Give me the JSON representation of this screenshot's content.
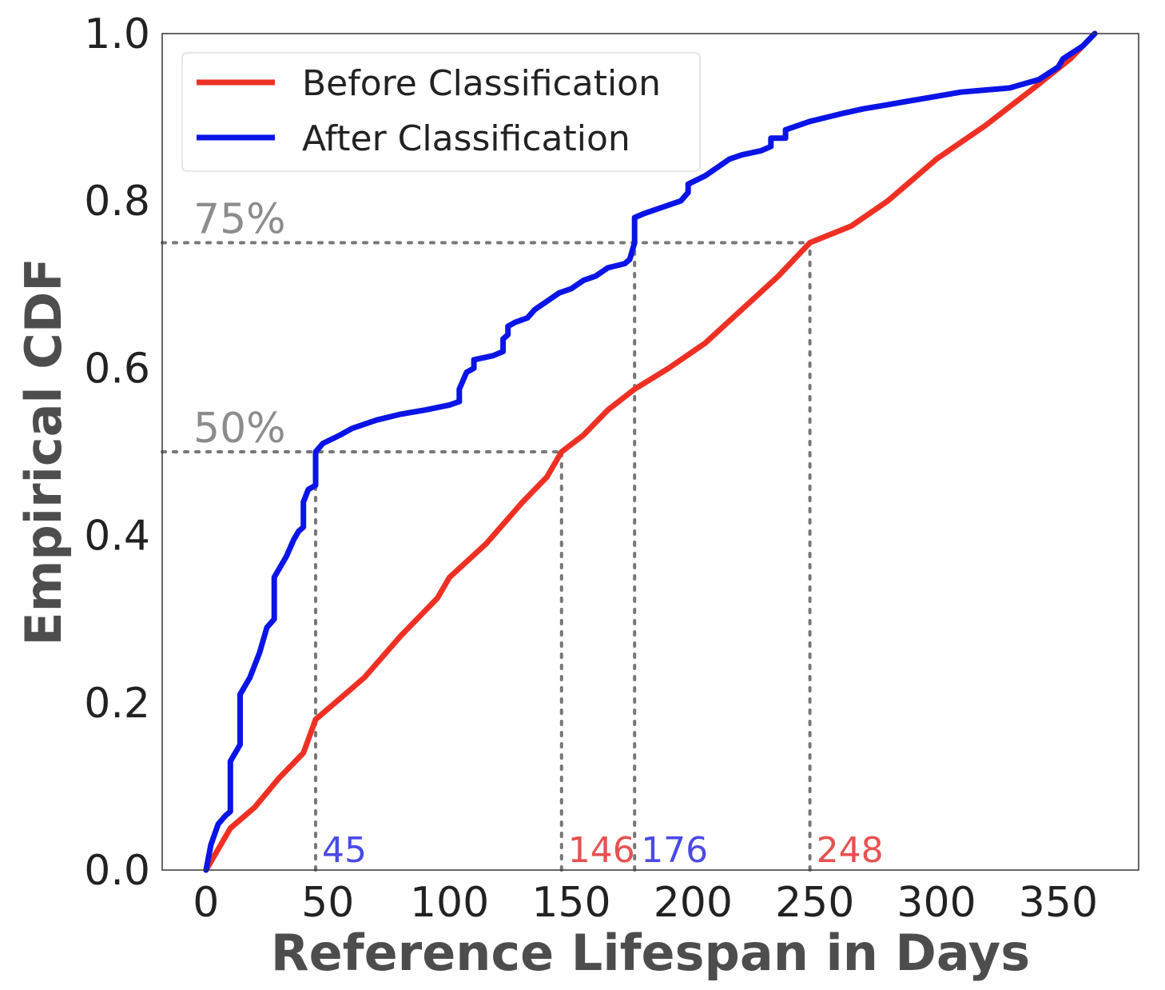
{
  "chart_data": {
    "type": "line",
    "title": "",
    "xlabel": "Reference Lifespan in Days",
    "ylabel": "Empirical CDF",
    "xlim": [
      -18,
      383
    ],
    "ylim": [
      0,
      1
    ],
    "xticks": [
      0,
      50,
      100,
      150,
      200,
      250,
      300,
      350
    ],
    "yticks": [
      "0.0",
      "0.2",
      "0.4",
      "0.6",
      "0.8",
      "1.0"
    ],
    "grid": false,
    "legend_position": "top-left",
    "series": [
      {
        "name": "Before Classification",
        "color": "#ee3024",
        "points": [
          [
            0,
            0
          ],
          [
            10,
            0.05
          ],
          [
            20,
            0.075
          ],
          [
            30,
            0.11
          ],
          [
            40,
            0.14
          ],
          [
            45,
            0.18
          ],
          [
            55,
            0.205
          ],
          [
            65,
            0.23
          ],
          [
            80,
            0.28
          ],
          [
            95,
            0.325
          ],
          [
            100,
            0.35
          ],
          [
            115,
            0.39
          ],
          [
            130,
            0.44
          ],
          [
            140,
            0.47
          ],
          [
            146,
            0.5
          ],
          [
            155,
            0.52
          ],
          [
            165,
            0.55
          ],
          [
            176,
            0.575
          ],
          [
            190,
            0.6
          ],
          [
            205,
            0.63
          ],
          [
            220,
            0.67
          ],
          [
            235,
            0.71
          ],
          [
            248,
            0.75
          ],
          [
            265,
            0.77
          ],
          [
            280,
            0.8
          ],
          [
            300,
            0.85
          ],
          [
            320,
            0.89
          ],
          [
            340,
            0.935
          ],
          [
            355,
            0.97
          ],
          [
            365,
            1.0
          ]
        ]
      },
      {
        "name": "After Classification",
        "color": "#0a14e6",
        "points": [
          [
            0,
            0
          ],
          [
            2,
            0.03
          ],
          [
            5,
            0.055
          ],
          [
            8,
            0.065
          ],
          [
            10,
            0.07
          ],
          [
            10,
            0.13
          ],
          [
            14,
            0.15
          ],
          [
            14,
            0.21
          ],
          [
            18,
            0.23
          ],
          [
            22,
            0.26
          ],
          [
            25,
            0.29
          ],
          [
            28,
            0.3
          ],
          [
            28,
            0.35
          ],
          [
            33,
            0.375
          ],
          [
            36,
            0.395
          ],
          [
            38,
            0.405
          ],
          [
            40,
            0.41
          ],
          [
            40,
            0.44
          ],
          [
            42,
            0.455
          ],
          [
            45,
            0.46
          ],
          [
            45,
            0.5
          ],
          [
            48,
            0.51
          ],
          [
            55,
            0.52
          ],
          [
            60,
            0.528
          ],
          [
            70,
            0.538
          ],
          [
            80,
            0.545
          ],
          [
            90,
            0.55
          ],
          [
            100,
            0.556
          ],
          [
            104,
            0.56
          ],
          [
            104,
            0.575
          ],
          [
            107,
            0.595
          ],
          [
            110,
            0.6
          ],
          [
            110,
            0.61
          ],
          [
            118,
            0.615
          ],
          [
            122,
            0.62
          ],
          [
            122,
            0.635
          ],
          [
            124,
            0.64
          ],
          [
            124,
            0.65
          ],
          [
            127,
            0.655
          ],
          [
            132,
            0.66
          ],
          [
            135,
            0.67
          ],
          [
            140,
            0.68
          ],
          [
            145,
            0.69
          ],
          [
            150,
            0.695
          ],
          [
            155,
            0.705
          ],
          [
            160,
            0.71
          ],
          [
            165,
            0.72
          ],
          [
            172,
            0.725
          ],
          [
            174,
            0.73
          ],
          [
            176,
            0.75
          ],
          [
            176,
            0.78
          ],
          [
            180,
            0.785
          ],
          [
            185,
            0.79
          ],
          [
            195,
            0.8
          ],
          [
            198,
            0.81
          ],
          [
            198,
            0.82
          ],
          [
            205,
            0.83
          ],
          [
            210,
            0.84
          ],
          [
            215,
            0.85
          ],
          [
            220,
            0.855
          ],
          [
            228,
            0.86
          ],
          [
            232,
            0.865
          ],
          [
            232,
            0.875
          ],
          [
            238,
            0.875
          ],
          [
            238,
            0.885
          ],
          [
            243,
            0.89
          ],
          [
            248,
            0.895
          ],
          [
            255,
            0.9
          ],
          [
            262,
            0.905
          ],
          [
            270,
            0.91
          ],
          [
            280,
            0.915
          ],
          [
            300,
            0.925
          ],
          [
            310,
            0.93
          ],
          [
            330,
            0.935
          ],
          [
            342,
            0.945
          ],
          [
            350,
            0.96
          ],
          [
            352,
            0.97
          ],
          [
            360,
            0.985
          ],
          [
            365,
            1.0
          ]
        ]
      }
    ],
    "reference_lines": [
      {
        "level": 0.5,
        "label": "50%",
        "until_x": 146
      },
      {
        "level": 0.75,
        "label": "75%",
        "until_x": 248
      }
    ],
    "markers": [
      {
        "x": 45,
        "y": 0.5,
        "label": "45",
        "color": "#4a4ae6"
      },
      {
        "x": 146,
        "y": 0.5,
        "label": "146",
        "color": "#e85050"
      },
      {
        "x": 176,
        "y": 0.75,
        "label": "176",
        "color": "#4a4ae6"
      },
      {
        "x": 248,
        "y": 0.75,
        "label": "248",
        "color": "#e85050"
      }
    ]
  }
}
